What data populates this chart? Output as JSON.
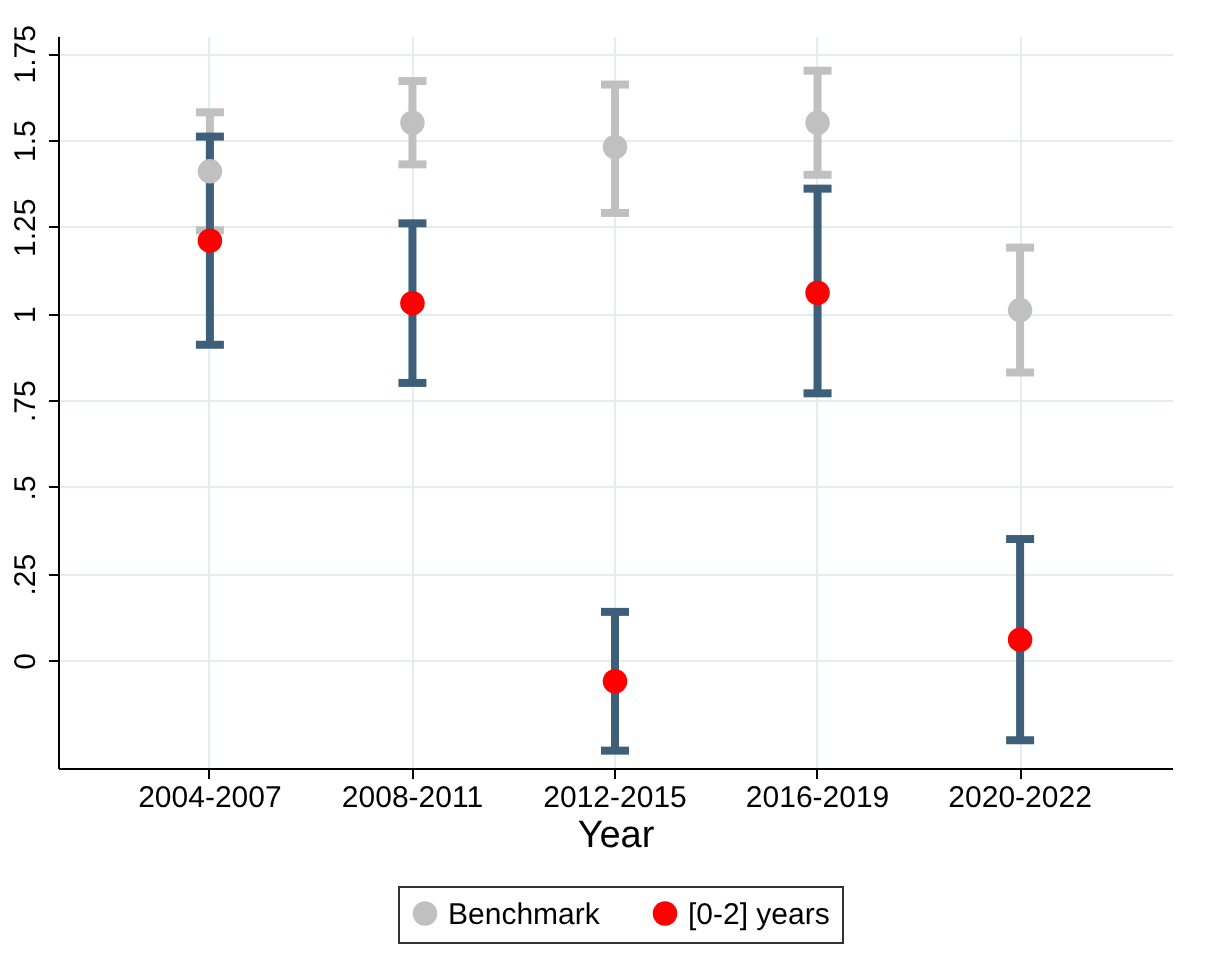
{
  "chart_data": {
    "type": "scatter",
    "xlabel": "Year",
    "categories": [
      "2004-2007",
      "2008-2011",
      "2012-2015",
      "2016-2019",
      "2020-2022"
    ],
    "series": [
      {
        "name": "Benchmark",
        "color": "#c0c0c0",
        "values": [
          1.41,
          1.55,
          1.48,
          1.55,
          1.01
        ],
        "errors": [
          [
            1.24,
            1.58
          ],
          [
            1.43,
            1.67
          ],
          [
            1.29,
            1.66
          ],
          [
            1.4,
            1.7
          ],
          [
            0.83,
            1.19
          ]
        ]
      },
      {
        "name": "[0-2] years",
        "color": "#ff0000",
        "values": [
          1.21,
          1.03,
          -0.06,
          1.06,
          0.06
        ],
        "errors": [
          [
            0.91,
            1.51
          ],
          [
            0.8,
            1.26
          ],
          [
            -0.26,
            0.14
          ],
          [
            0.77,
            1.36
          ],
          [
            -0.23,
            0.35
          ]
        ]
      }
    ],
    "ylim": [
      -0.31,
      1.8
    ],
    "yticks": [
      0,
      {
        "value": 0.25,
        "label": ".25"
      },
      {
        "value": 0.5,
        "label": ".5"
      },
      {
        "value": 0.75,
        "label": ".75"
      },
      1,
      1.25,
      1.5,
      1.75
    ],
    "grid": true,
    "legend": "bottom",
    "marker": "circle"
  }
}
